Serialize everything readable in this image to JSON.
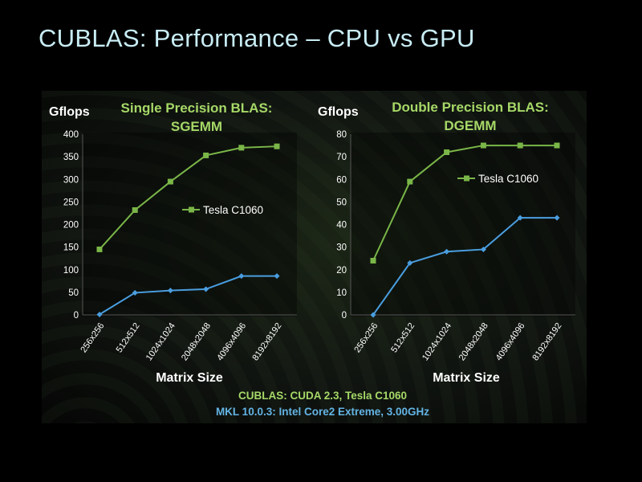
{
  "slide_title": "CUBLAS: Performance – CPU vs GPU",
  "colors": {
    "gpu": "#7ab648",
    "cpu": "#4a9ee0",
    "title": "#c8ecf4",
    "chart_title": "#a6d867",
    "text": "#ffffff"
  },
  "chart_data": [
    {
      "type": "line",
      "title": "Single Precision BLAS: SGEMM",
      "title_lines": [
        "Single Precision BLAS:",
        "SGEMM"
      ],
      "ylabel": "Gflops",
      "xlabel": "Matrix Size",
      "categories": [
        "256x256",
        "512x512",
        "1024x1024",
        "2048x2048",
        "4096x4096",
        "8192x8192"
      ],
      "ylim": [
        0,
        400
      ],
      "yticks": [
        0,
        50,
        100,
        150,
        200,
        250,
        300,
        350,
        400
      ],
      "series": [
        {
          "name": "Tesla C1060",
          "color": "#7ab648",
          "values": [
            145,
            232,
            295,
            353,
            370,
            373
          ]
        },
        {
          "color": "#4a9ee0",
          "values": [
            1,
            49,
            54,
            57,
            86,
            86
          ]
        }
      ],
      "legend": "center-right",
      "grid": false
    },
    {
      "type": "line",
      "title": "Double Precision BLAS: DGEMM",
      "title_lines": [
        "Double Precision BLAS:",
        "DGEMM"
      ],
      "ylabel": "Gflops",
      "xlabel": "Matrix Size",
      "categories": [
        "256x256",
        "512x512",
        "1024x1024",
        "2048x2048",
        "4096x4096",
        "8192x8192"
      ],
      "ylim": [
        0,
        80
      ],
      "yticks": [
        0,
        10,
        20,
        30,
        40,
        50,
        60,
        70,
        80
      ],
      "series": [
        {
          "name": "Tesla C1060",
          "color": "#7ab648",
          "values": [
            24,
            59,
            72,
            75,
            75,
            75
          ]
        },
        {
          "color": "#4a9ee0",
          "values": [
            0,
            23,
            28,
            29,
            43,
            43
          ]
        }
      ],
      "legend": "top-right",
      "grid": false
    }
  ],
  "footer": {
    "line1": "CUBLAS: CUDA 2.3, Tesla C1060",
    "line2": "MKL 10.0.3: Intel Core2 Extreme, 3.00GHz"
  }
}
